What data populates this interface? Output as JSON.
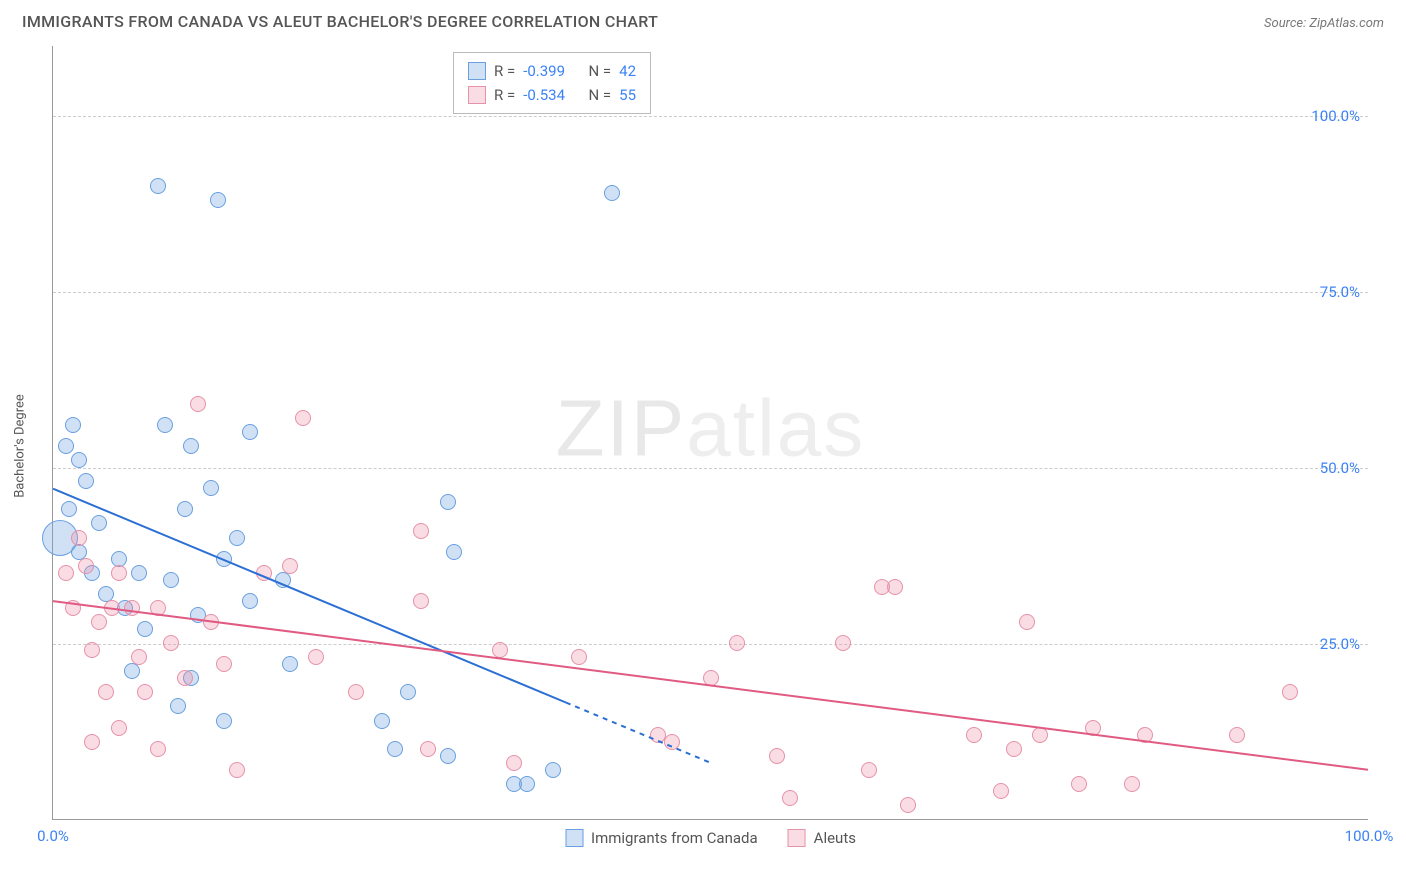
{
  "title": "IMMIGRANTS FROM CANADA VS ALEUT BACHELOR'S DEGREE CORRELATION CHART",
  "source": "Source: ZipAtlas.com",
  "watermark_a": "ZIP",
  "watermark_b": "atlas",
  "ylabel": "Bachelor's Degree",
  "xlim": [
    0,
    100
  ],
  "ylim": [
    0,
    110
  ],
  "grid_y": [
    25,
    50,
    75,
    100
  ],
  "yticks": [
    {
      "v": 25,
      "label": "25.0%"
    },
    {
      "v": 50,
      "label": "50.0%"
    },
    {
      "v": 75,
      "label": "75.0%"
    },
    {
      "v": 100,
      "label": "100.0%"
    }
  ],
  "xticks": [
    {
      "v": 0,
      "label": "0.0%"
    },
    {
      "v": 100,
      "label": "100.0%"
    }
  ],
  "series": [
    {
      "name": "Immigrants from Canada",
      "color_fill": "rgba(120,170,230,0.35)",
      "color_stroke": "#6aa0de",
      "r_value": "-0.399",
      "n_value": "42",
      "radius": 8,
      "trend": {
        "x1": 0,
        "y1": 47,
        "x2": 50,
        "y2": 8,
        "solid_pct": 0.78,
        "color": "#2b6fd4",
        "width": 2
      },
      "points": [
        {
          "x": 0.5,
          "y": 40,
          "r": 18
        },
        {
          "x": 1.0,
          "y": 53
        },
        {
          "x": 1.2,
          "y": 44
        },
        {
          "x": 1.5,
          "y": 56
        },
        {
          "x": 2.0,
          "y": 51
        },
        {
          "x": 2.0,
          "y": 38
        },
        {
          "x": 2.5,
          "y": 48
        },
        {
          "x": 3.0,
          "y": 35
        },
        {
          "x": 3.5,
          "y": 42
        },
        {
          "x": 4.0,
          "y": 32
        },
        {
          "x": 5.0,
          "y": 37
        },
        {
          "x": 5.5,
          "y": 30
        },
        {
          "x": 6.0,
          "y": 21
        },
        {
          "x": 6.5,
          "y": 35
        },
        {
          "x": 7.0,
          "y": 27
        },
        {
          "x": 8.0,
          "y": 90
        },
        {
          "x": 8.5,
          "y": 56
        },
        {
          "x": 9.0,
          "y": 34
        },
        {
          "x": 9.5,
          "y": 16
        },
        {
          "x": 10.0,
          "y": 44
        },
        {
          "x": 10.5,
          "y": 53
        },
        {
          "x": 10.5,
          "y": 20
        },
        {
          "x": 11.0,
          "y": 29
        },
        {
          "x": 12.0,
          "y": 47
        },
        {
          "x": 12.5,
          "y": 88
        },
        {
          "x": 13.0,
          "y": 37
        },
        {
          "x": 13.0,
          "y": 14
        },
        {
          "x": 14.0,
          "y": 40
        },
        {
          "x": 15.0,
          "y": 31
        },
        {
          "x": 15.0,
          "y": 55
        },
        {
          "x": 17.5,
          "y": 34
        },
        {
          "x": 18.0,
          "y": 22
        },
        {
          "x": 25.0,
          "y": 14
        },
        {
          "x": 26.0,
          "y": 10
        },
        {
          "x": 27.0,
          "y": 18
        },
        {
          "x": 30.0,
          "y": 45
        },
        {
          "x": 30.5,
          "y": 38
        },
        {
          "x": 30.0,
          "y": 9
        },
        {
          "x": 35.0,
          "y": 5
        },
        {
          "x": 36.0,
          "y": 5
        },
        {
          "x": 38.0,
          "y": 7
        },
        {
          "x": 42.5,
          "y": 89
        }
      ]
    },
    {
      "name": "Aleuts",
      "color_fill": "rgba(240,140,165,0.3)",
      "color_stroke": "#e692a8",
      "r_value": "-0.534",
      "n_value": "55",
      "radius": 8,
      "trend": {
        "x1": 0,
        "y1": 31,
        "x2": 100,
        "y2": 7,
        "solid_pct": 1.0,
        "color": "#e05a82",
        "width": 2
      },
      "points": [
        {
          "x": 1.0,
          "y": 35
        },
        {
          "x": 1.5,
          "y": 30
        },
        {
          "x": 2.0,
          "y": 40
        },
        {
          "x": 2.5,
          "y": 36
        },
        {
          "x": 3.0,
          "y": 24
        },
        {
          "x": 3.0,
          "y": 11
        },
        {
          "x": 3.5,
          "y": 28
        },
        {
          "x": 4.0,
          "y": 18
        },
        {
          "x": 4.5,
          "y": 30
        },
        {
          "x": 5.0,
          "y": 13
        },
        {
          "x": 5.0,
          "y": 35
        },
        {
          "x": 6.0,
          "y": 30
        },
        {
          "x": 6.5,
          "y": 23
        },
        {
          "x": 7.0,
          "y": 18
        },
        {
          "x": 8.0,
          "y": 10
        },
        {
          "x": 8.0,
          "y": 30
        },
        {
          "x": 9.0,
          "y": 25
        },
        {
          "x": 10.0,
          "y": 20
        },
        {
          "x": 11.0,
          "y": 59
        },
        {
          "x": 12.0,
          "y": 28
        },
        {
          "x": 13.0,
          "y": 22
        },
        {
          "x": 14.0,
          "y": 7
        },
        {
          "x": 16.0,
          "y": 35
        },
        {
          "x": 18.0,
          "y": 36
        },
        {
          "x": 19.0,
          "y": 57
        },
        {
          "x": 20.0,
          "y": 23
        },
        {
          "x": 23.0,
          "y": 18
        },
        {
          "x": 28.0,
          "y": 41
        },
        {
          "x": 28.0,
          "y": 31
        },
        {
          "x": 28.5,
          "y": 10
        },
        {
          "x": 34.0,
          "y": 24
        },
        {
          "x": 35.0,
          "y": 8
        },
        {
          "x": 40.0,
          "y": 23
        },
        {
          "x": 46.0,
          "y": 12
        },
        {
          "x": 47.0,
          "y": 11
        },
        {
          "x": 50.0,
          "y": 20
        },
        {
          "x": 52.0,
          "y": 25
        },
        {
          "x": 55.0,
          "y": 9
        },
        {
          "x": 56.0,
          "y": 3
        },
        {
          "x": 60.0,
          "y": 25
        },
        {
          "x": 62.0,
          "y": 7
        },
        {
          "x": 63.0,
          "y": 33
        },
        {
          "x": 64.0,
          "y": 33
        },
        {
          "x": 65.0,
          "y": 2
        },
        {
          "x": 70.0,
          "y": 12
        },
        {
          "x": 72.0,
          "y": 4
        },
        {
          "x": 73.0,
          "y": 10
        },
        {
          "x": 74.0,
          "y": 28
        },
        {
          "x": 75.0,
          "y": 12
        },
        {
          "x": 78.0,
          "y": 5
        },
        {
          "x": 79.0,
          "y": 13
        },
        {
          "x": 82.0,
          "y": 5
        },
        {
          "x": 83.0,
          "y": 12
        },
        {
          "x": 90.0,
          "y": 12
        },
        {
          "x": 94.0,
          "y": 18
        }
      ]
    }
  ],
  "legend_labels": {
    "r": "R =",
    "n": "N ="
  }
}
